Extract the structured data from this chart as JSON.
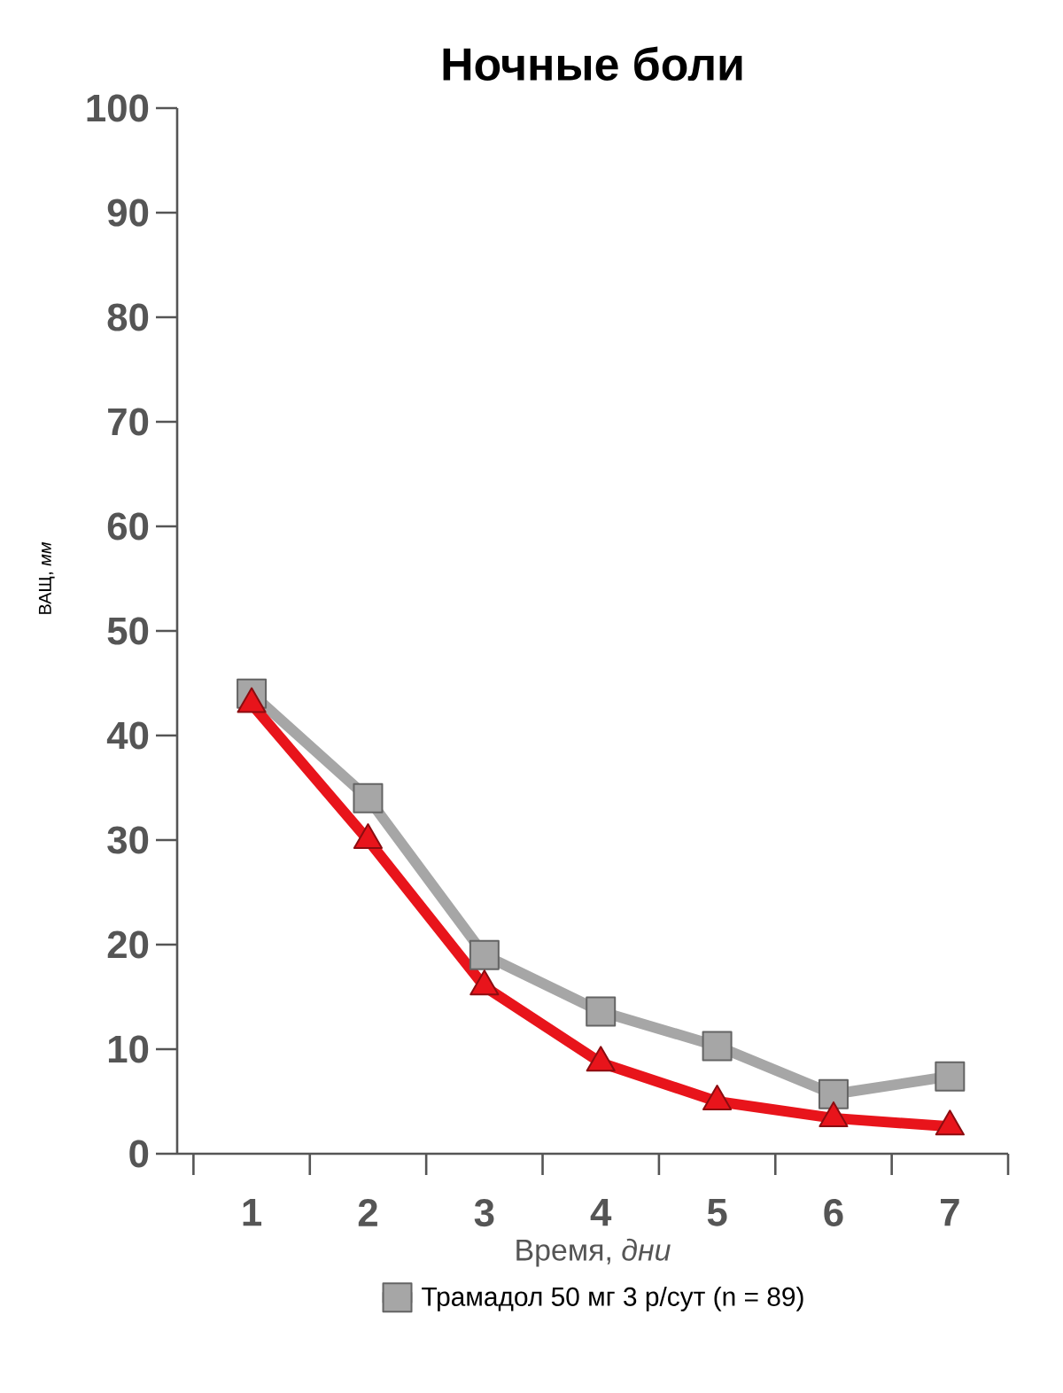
{
  "chart_data": {
    "type": "line",
    "title": "Ночные боли",
    "xlabel": "Время, *дни*",
    "ylabel": "ВАЩ, *мм*",
    "categories": [
      "1",
      "2",
      "3",
      "4",
      "5",
      "6",
      "7"
    ],
    "ylim": [
      0,
      100
    ],
    "yticks": [
      0,
      10,
      20,
      30,
      40,
      50,
      60,
      70,
      80,
      90,
      100
    ],
    "series": [
      {
        "name": "Трамадол 50 мг 3 р/сут (n = 89)",
        "color": "#a6a6a6",
        "marker": "square",
        "values": [
          44,
          34,
          19,
          13.6,
          10.3,
          5.7,
          7.4
        ]
      },
      {
        "color": "#e8141b",
        "marker": "triangle",
        "values": [
          43,
          30,
          16,
          8.7,
          5,
          3.4,
          2.6
        ]
      }
    ],
    "legend": "bottom",
    "grid": false
  }
}
